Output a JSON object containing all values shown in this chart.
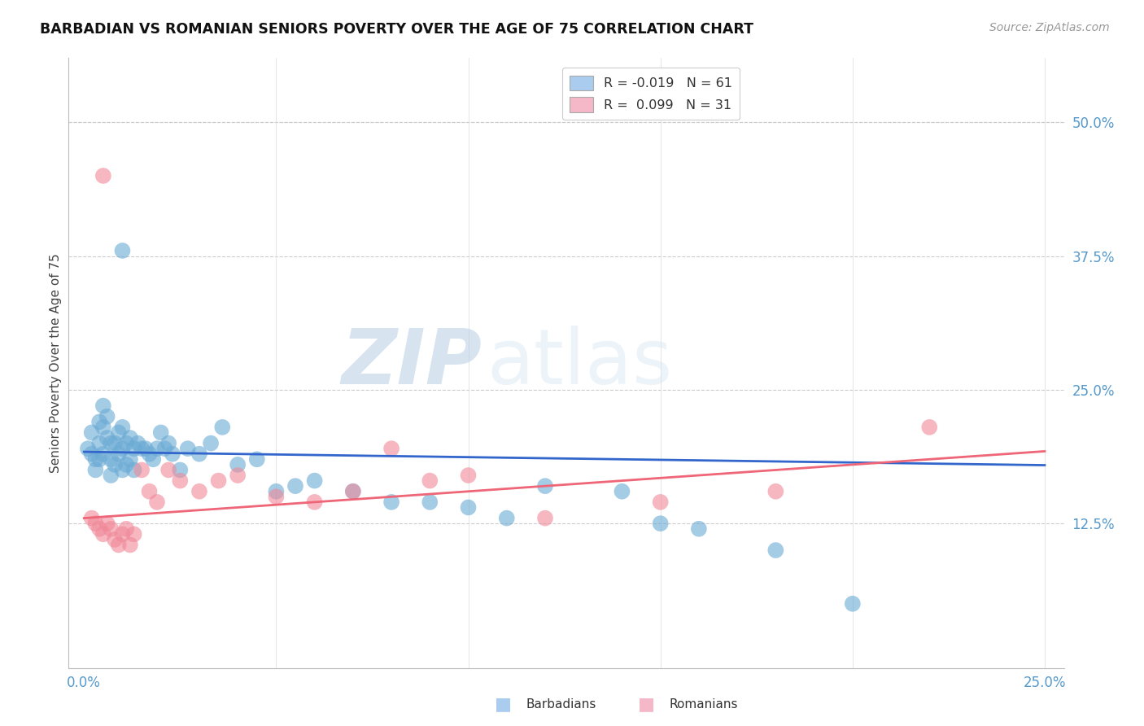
{
  "title": "BARBADIAN VS ROMANIAN SENIORS POVERTY OVER THE AGE OF 75 CORRELATION CHART",
  "source": "Source: ZipAtlas.com",
  "ylabel": "Seniors Poverty Over the Age of 75",
  "right_yticks": [
    "50.0%",
    "37.5%",
    "25.0%",
    "12.5%"
  ],
  "right_ytick_vals": [
    0.5,
    0.375,
    0.25,
    0.125
  ],
  "xlim": [
    0.0,
    0.25
  ],
  "ylim": [
    0.0,
    0.55
  ],
  "legend_labels": [
    "R = -0.019   N = 61",
    "R =  0.099   N = 31"
  ],
  "barbadian_legend_color": "#aaccee",
  "romanian_legend_color": "#f4b8c8",
  "watermark_zip": "ZIP",
  "watermark_atlas": "atlas",
  "barbadian_color": "#6aaad4",
  "romanian_color": "#f08898",
  "barbadian_line_color": "#3366cc",
  "romanian_line_color": "#ee6677",
  "background_color": "#ffffff",
  "grid_color": "#cccccc",
  "tick_color": "#5599cc",
  "barbadian_x": [
    0.001,
    0.002,
    0.002,
    0.003,
    0.003,
    0.004,
    0.004,
    0.004,
    0.005,
    0.005,
    0.005,
    0.006,
    0.006,
    0.007,
    0.007,
    0.007,
    0.008,
    0.008,
    0.009,
    0.009,
    0.01,
    0.01,
    0.01,
    0.011,
    0.011,
    0.012,
    0.012,
    0.013,
    0.013,
    0.014,
    0.015,
    0.016,
    0.017,
    0.018,
    0.019,
    0.02,
    0.021,
    0.022,
    0.023,
    0.025,
    0.027,
    0.03,
    0.033,
    0.036,
    0.04,
    0.045,
    0.05,
    0.055,
    0.06,
    0.07,
    0.08,
    0.09,
    0.1,
    0.11,
    0.12,
    0.14,
    0.15,
    0.16,
    0.18,
    0.2,
    0.01
  ],
  "barbadian_y": [
    0.195,
    0.21,
    0.19,
    0.185,
    0.175,
    0.22,
    0.2,
    0.185,
    0.235,
    0.215,
    0.19,
    0.225,
    0.205,
    0.2,
    0.185,
    0.17,
    0.2,
    0.18,
    0.21,
    0.19,
    0.215,
    0.195,
    0.175,
    0.2,
    0.18,
    0.205,
    0.185,
    0.195,
    0.175,
    0.2,
    0.195,
    0.195,
    0.19,
    0.185,
    0.195,
    0.21,
    0.195,
    0.2,
    0.19,
    0.175,
    0.195,
    0.19,
    0.2,
    0.215,
    0.18,
    0.185,
    0.155,
    0.16,
    0.165,
    0.155,
    0.145,
    0.145,
    0.14,
    0.13,
    0.16,
    0.155,
    0.125,
    0.12,
    0.1,
    0.05,
    0.38
  ],
  "romanian_x": [
    0.002,
    0.003,
    0.004,
    0.005,
    0.006,
    0.007,
    0.008,
    0.009,
    0.01,
    0.011,
    0.012,
    0.013,
    0.015,
    0.017,
    0.019,
    0.022,
    0.025,
    0.03,
    0.035,
    0.04,
    0.05,
    0.06,
    0.07,
    0.08,
    0.09,
    0.1,
    0.12,
    0.15,
    0.18,
    0.22,
    0.005
  ],
  "romanian_y": [
    0.13,
    0.125,
    0.12,
    0.115,
    0.125,
    0.12,
    0.11,
    0.105,
    0.115,
    0.12,
    0.105,
    0.115,
    0.175,
    0.155,
    0.145,
    0.175,
    0.165,
    0.155,
    0.165,
    0.17,
    0.15,
    0.145,
    0.155,
    0.195,
    0.165,
    0.17,
    0.13,
    0.145,
    0.155,
    0.215,
    0.45
  ]
}
